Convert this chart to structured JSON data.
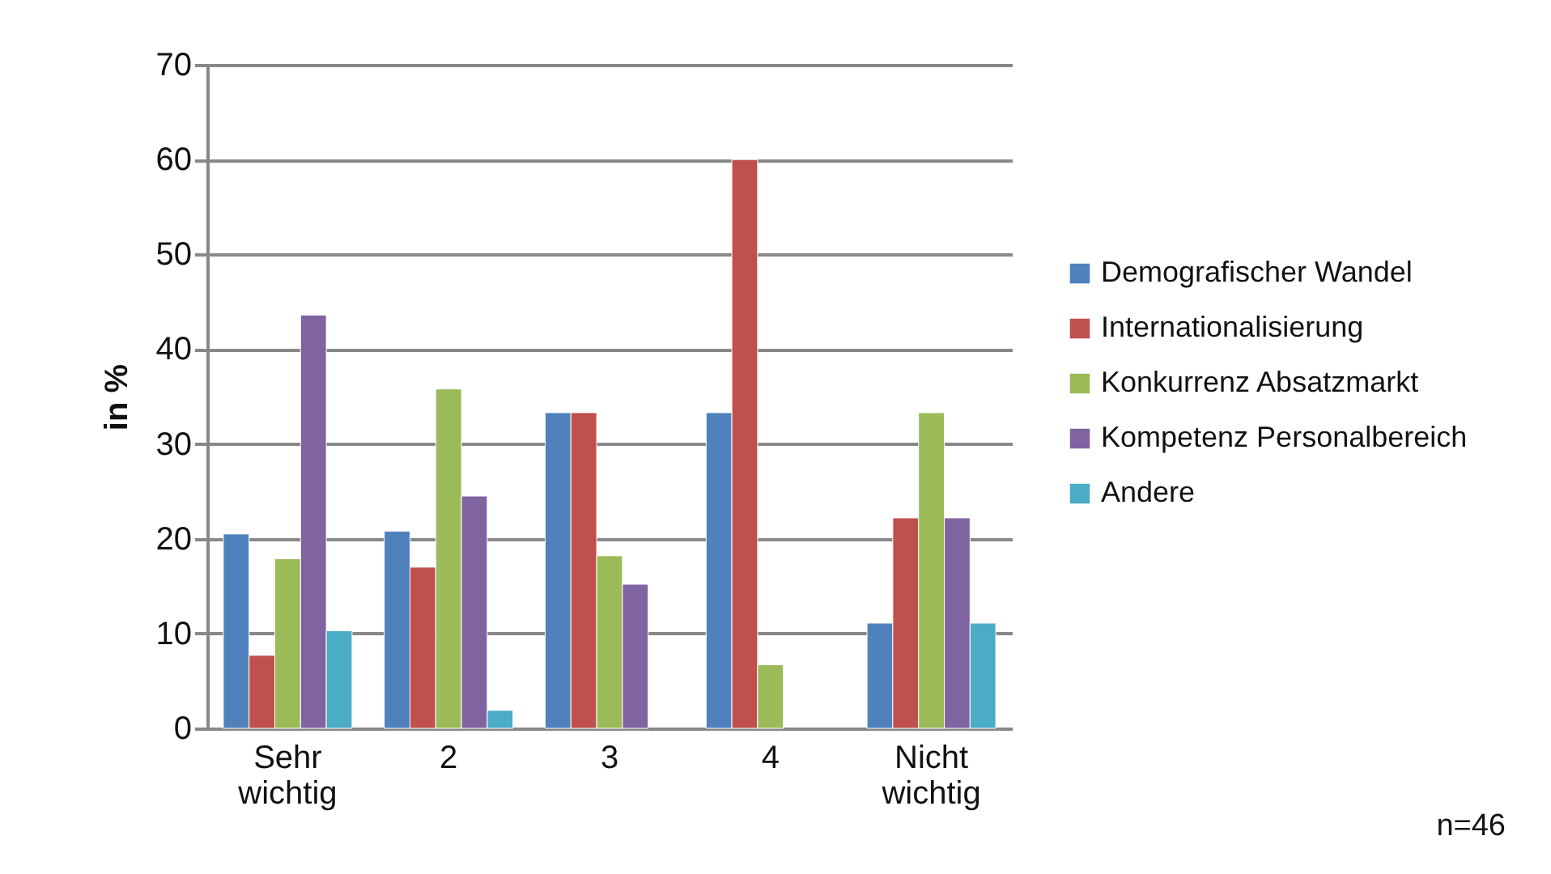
{
  "chart_data": {
    "type": "bar",
    "categories": [
      "Sehr wichtig",
      "2",
      "3",
      "4",
      "Nicht wichtig"
    ],
    "ylabel": "in %",
    "ylim": [
      0,
      70
    ],
    "yticks": [
      0,
      10,
      20,
      30,
      40,
      50,
      60,
      70
    ],
    "grid": "y",
    "legend": "right",
    "annotations": [
      "n=46"
    ],
    "series": [
      {
        "name": "Demografischer Wandel",
        "color": "#4f81bd",
        "values": [
          20.5,
          20.8,
          33.3,
          33.3,
          11.1
        ]
      },
      {
        "name": "Internationalisierung",
        "color": "#c0504d",
        "values": [
          7.7,
          17,
          33.3,
          60,
          22.2
        ]
      },
      {
        "name": "Konkurrenz Absatzmarkt",
        "color": "#9bbb59",
        "values": [
          17.9,
          35.8,
          18.2,
          6.7,
          33.3
        ]
      },
      {
        "name": "Kompetenz Personalbereich",
        "color": "#8064a2",
        "values": [
          43.6,
          24.5,
          15.2,
          null,
          22.2
        ]
      },
      {
        "name": "Andere",
        "color": "#4bacc6",
        "values": [
          10.3,
          1.9,
          null,
          null,
          11.1
        ]
      }
    ]
  }
}
